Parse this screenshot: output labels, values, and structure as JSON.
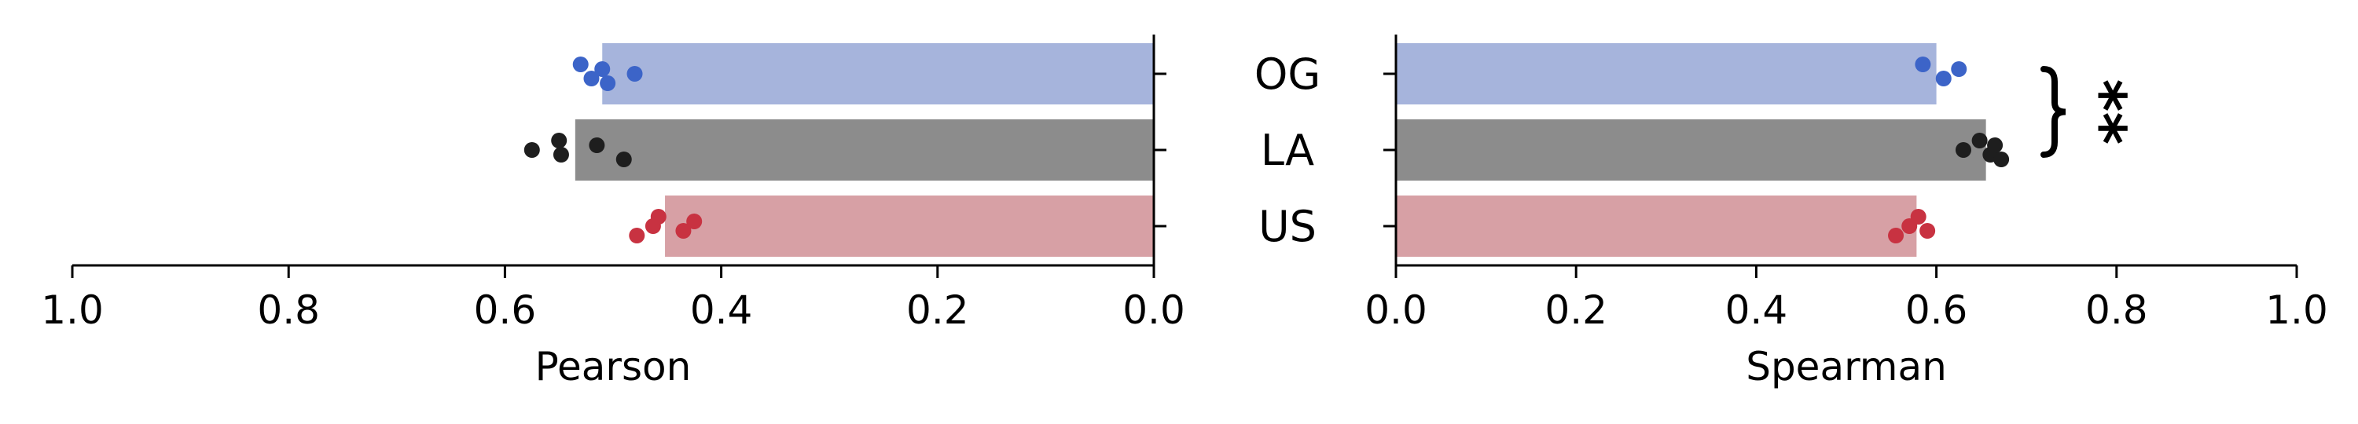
{
  "chart_data": [
    {
      "type": "bar",
      "orientation": "horizontal",
      "xlabel": "Pearson",
      "xlim": [
        1.0,
        0.0
      ],
      "x_reversed": true,
      "xticks": [
        "1.0",
        "0.8",
        "0.6",
        "0.4",
        "0.2",
        "0.0"
      ],
      "categories": [
        "OG",
        "LA",
        "US"
      ],
      "values": [
        0.51,
        0.535,
        0.452
      ],
      "colors": [
        "#a6b4dc",
        "#8c8c8c",
        "#d7a0a5"
      ],
      "points": [
        [
          0.53,
          0.52,
          0.51,
          0.505,
          0.48
        ],
        [
          0.575,
          0.55,
          0.548,
          0.515,
          0.49
        ],
        [
          0.478,
          0.463,
          0.458,
          0.435,
          0.425
        ]
      ],
      "point_colors": [
        "#3c64c8",
        "#1e1e1e",
        "#c83241"
      ]
    },
    {
      "type": "bar",
      "orientation": "horizontal",
      "xlabel": "Spearman",
      "xlim": [
        0.0,
        1.0
      ],
      "xticks": [
        "0.0",
        "0.2",
        "0.4",
        "0.6",
        "0.8",
        "1.0"
      ],
      "categories": [
        "OG",
        "LA",
        "US"
      ],
      "values": [
        0.6,
        0.655,
        0.578
      ],
      "colors": [
        "#a6b4dc",
        "#8c8c8c",
        "#d7a0a5"
      ],
      "points": [
        [
          0.585,
          0.608,
          0.625
        ],
        [
          0.63,
          0.648,
          0.66,
          0.665,
          0.672
        ],
        [
          0.555,
          0.57,
          0.58,
          0.59
        ]
      ],
      "point_colors": [
        "#3c64c8",
        "#1e1e1e",
        "#c83241"
      ],
      "annotation": {
        "between": [
          "OG",
          "LA"
        ],
        "text": "**"
      }
    }
  ]
}
